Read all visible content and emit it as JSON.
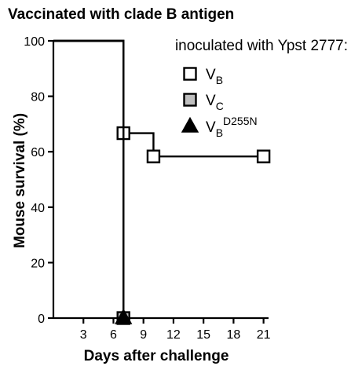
{
  "chart_data": {
    "type": "line",
    "step": true,
    "title": "Vaccinated with clade B antigen",
    "xlabel": "Days after challenge",
    "ylabel": "Mouse survival (%)",
    "xlim": [
      0,
      21.5
    ],
    "ylim": [
      0,
      100
    ],
    "xticks": [
      3,
      6,
      9,
      12,
      15,
      18,
      21
    ],
    "yticks": [
      0,
      20,
      40,
      60,
      80,
      100
    ],
    "grid": false,
    "legend": {
      "title": "inoculated with Ypst  2777:",
      "position": "top-right"
    },
    "series": [
      {
        "name": "V",
        "name_sub": "B",
        "name_sup": "",
        "marker": "square",
        "fill": "#ffffff",
        "points": [
          {
            "x": 0,
            "y": 100,
            "marker": false
          },
          {
            "x": 7,
            "y": 66.7,
            "marker": true
          },
          {
            "x": 10,
            "y": 58.3,
            "marker": true
          },
          {
            "x": 21,
            "y": 58.3,
            "marker": true
          }
        ]
      },
      {
        "name": "V",
        "name_sub": "C",
        "name_sup": "",
        "marker": "square",
        "fill": "#bfbfbf",
        "points": [
          {
            "x": 0,
            "y": 100,
            "marker": false
          },
          {
            "x": 7,
            "y": 0,
            "marker": true
          }
        ]
      },
      {
        "name": "V",
        "name_sub": "B",
        "name_sup": "D255N",
        "marker": "triangle",
        "fill": "#000000",
        "points": [
          {
            "x": 0,
            "y": 100,
            "marker": false
          },
          {
            "x": 7,
            "y": 0,
            "marker": true
          }
        ]
      }
    ]
  }
}
